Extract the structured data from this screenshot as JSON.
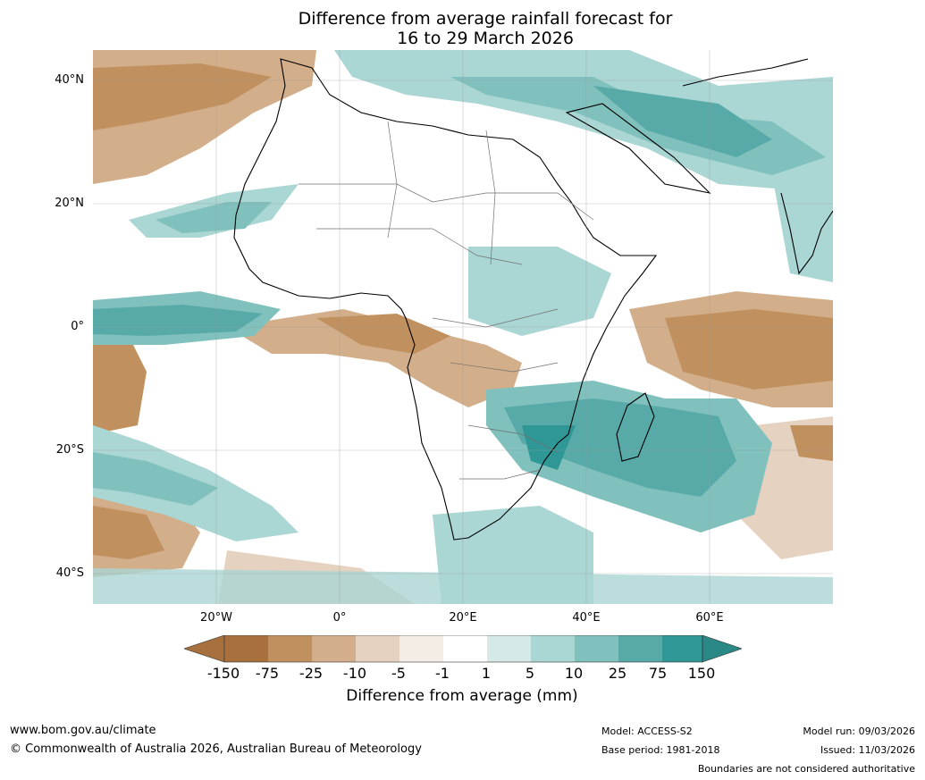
{
  "title": {
    "line1": "Difference from average rainfall forecast for",
    "line2": "16 to 29 March 2026"
  },
  "map": {
    "region": "Africa",
    "lat_labels": [
      "40°N",
      "20°N",
      "0°",
      "20°S",
      "40°S"
    ],
    "lon_labels": [
      "20°W",
      "0°",
      "20°E",
      "40°E",
      "60°E"
    ]
  },
  "legend": {
    "title": "Difference from average (mm)",
    "ticks": [
      "-150",
      "-75",
      "-25",
      "-10",
      "-5",
      "-1",
      "1",
      "5",
      "10",
      "25",
      "75",
      "150"
    ],
    "colors": [
      "#a8703c",
      "#c0915f",
      "#d2ae8a",
      "#e6d2c0",
      "#f3ede6",
      "#ffffff",
      "#d5eae8",
      "#aad6d3",
      "#80c0bd",
      "#58aaa8",
      "#2f9795",
      "#2a8887"
    ]
  },
  "footer": {
    "website": "www.bom.gov.au/climate",
    "copyright": "© Commonwealth of Australia 2026, Australian Bureau of Meteorology",
    "model": "Model: ACCESS-S2",
    "base_period": "Base period: 1981-2018",
    "model_run": "Model run: 09/03/2026",
    "issued": "Issued: 11/03/2026",
    "disclaimer": "Boundaries are not considered authoritative"
  }
}
